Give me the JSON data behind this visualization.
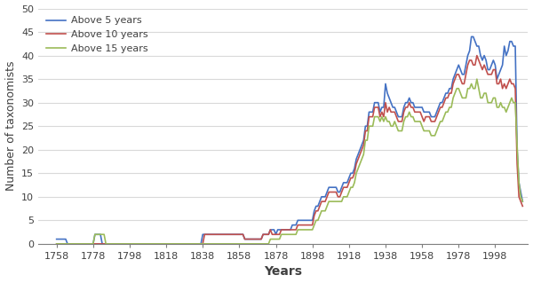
{
  "title": "",
  "xlabel": "Years",
  "ylabel": "Number of taxonomists",
  "ylim": [
    0,
    50
  ],
  "yticks": [
    0,
    5,
    10,
    15,
    20,
    25,
    30,
    35,
    40,
    45,
    50
  ],
  "xtick_positions": [
    1758,
    1778,
    1798,
    1818,
    1838,
    1858,
    1878,
    1898,
    1918,
    1938,
    1958,
    1978,
    1998
  ],
  "line_colors": {
    "above5": "#4472C4",
    "above10": "#C0504D",
    "above15": "#9BBB59"
  },
  "legend_labels": [
    "Above 5 years",
    "Above 10 years",
    "Above 15 years"
  ],
  "years": [
    1758,
    1759,
    1760,
    1761,
    1762,
    1763,
    1764,
    1765,
    1766,
    1767,
    1768,
    1769,
    1770,
    1771,
    1772,
    1773,
    1774,
    1775,
    1776,
    1777,
    1778,
    1779,
    1780,
    1781,
    1782,
    1783,
    1784,
    1785,
    1786,
    1787,
    1788,
    1789,
    1790,
    1791,
    1792,
    1793,
    1794,
    1795,
    1796,
    1797,
    1798,
    1799,
    1800,
    1801,
    1802,
    1803,
    1804,
    1805,
    1806,
    1807,
    1808,
    1809,
    1810,
    1811,
    1812,
    1813,
    1814,
    1815,
    1816,
    1817,
    1818,
    1819,
    1820,
    1821,
    1822,
    1823,
    1824,
    1825,
    1826,
    1827,
    1828,
    1829,
    1830,
    1831,
    1832,
    1833,
    1834,
    1835,
    1836,
    1837,
    1838,
    1839,
    1840,
    1841,
    1842,
    1843,
    1844,
    1845,
    1846,
    1847,
    1848,
    1849,
    1850,
    1851,
    1852,
    1853,
    1854,
    1855,
    1856,
    1857,
    1858,
    1859,
    1860,
    1861,
    1862,
    1863,
    1864,
    1865,
    1866,
    1867,
    1868,
    1869,
    1870,
    1871,
    1872,
    1873,
    1874,
    1875,
    1876,
    1877,
    1878,
    1879,
    1880,
    1881,
    1882,
    1883,
    1884,
    1885,
    1886,
    1887,
    1888,
    1889,
    1890,
    1891,
    1892,
    1893,
    1894,
    1895,
    1896,
    1897,
    1898,
    1899,
    1900,
    1901,
    1902,
    1903,
    1904,
    1905,
    1906,
    1907,
    1908,
    1909,
    1910,
    1911,
    1912,
    1913,
    1914,
    1915,
    1916,
    1917,
    1918,
    1919,
    1920,
    1921,
    1922,
    1923,
    1924,
    1925,
    1926,
    1927,
    1928,
    1929,
    1930,
    1931,
    1932,
    1933,
    1934,
    1935,
    1936,
    1937,
    1938,
    1939,
    1940,
    1941,
    1942,
    1943,
    1944,
    1945,
    1946,
    1947,
    1948,
    1949,
    1950,
    1951,
    1952,
    1953,
    1954,
    1955,
    1956,
    1957,
    1958,
    1959,
    1960,
    1961,
    1962,
    1963,
    1964,
    1965,
    1966,
    1967,
    1968,
    1969,
    1970,
    1971,
    1972,
    1973,
    1974,
    1975,
    1976,
    1977,
    1978,
    1979,
    1980,
    1981,
    1982,
    1983,
    1984,
    1985,
    1986,
    1987,
    1988,
    1989,
    1990,
    1991,
    1992,
    1993,
    1994,
    1995,
    1996,
    1997,
    1998,
    1999,
    2000,
    2001,
    2002,
    2003,
    2004,
    2005,
    2006,
    2007,
    2008,
    2009,
    2010,
    2011,
    2012,
    2013
  ],
  "above5": [
    1,
    1,
    1,
    1,
    1,
    1,
    0,
    0,
    0,
    0,
    0,
    0,
    0,
    0,
    0,
    0,
    0,
    0,
    0,
    0,
    0,
    2,
    2,
    2,
    2,
    0,
    0,
    0,
    0,
    0,
    0,
    0,
    0,
    0,
    0,
    0,
    0,
    0,
    0,
    0,
    0,
    0,
    0,
    0,
    0,
    0,
    0,
    0,
    0,
    0,
    0,
    0,
    0,
    0,
    0,
    0,
    0,
    0,
    0,
    0,
    0,
    0,
    0,
    0,
    0,
    0,
    0,
    0,
    0,
    0,
    0,
    0,
    0,
    0,
    0,
    0,
    0,
    0,
    0,
    0,
    2,
    2,
    2,
    2,
    2,
    2,
    2,
    2,
    2,
    2,
    2,
    2,
    2,
    2,
    2,
    2,
    2,
    2,
    2,
    2,
    2,
    2,
    2,
    1,
    1,
    1,
    1,
    1,
    1,
    1,
    1,
    1,
    1,
    2,
    2,
    2,
    2,
    3,
    3,
    3,
    2,
    3,
    3,
    3,
    3,
    3,
    3,
    3,
    3,
    4,
    4,
    4,
    5,
    5,
    5,
    5,
    5,
    5,
    5,
    5,
    5,
    7,
    8,
    8,
    9,
    10,
    10,
    10,
    11,
    12,
    12,
    12,
    12,
    12,
    11,
    11,
    12,
    13,
    13,
    13,
    14,
    15,
    15,
    16,
    18,
    19,
    20,
    21,
    22,
    25,
    25,
    28,
    28,
    28,
    30,
    30,
    30,
    28,
    29,
    29,
    34,
    32,
    31,
    30,
    29,
    29,
    28,
    27,
    27,
    27,
    29,
    30,
    30,
    31,
    30,
    30,
    29,
    29,
    29,
    29,
    29,
    28,
    28,
    28,
    28,
    27,
    27,
    27,
    28,
    29,
    30,
    30,
    31,
    32,
    32,
    33,
    33,
    35,
    36,
    37,
    38,
    37,
    36,
    36,
    38,
    40,
    41,
    44,
    44,
    43,
    42,
    42,
    40,
    39,
    40,
    39,
    37,
    37,
    38,
    39,
    38,
    35,
    36,
    37,
    38,
    42,
    40,
    41,
    43,
    43,
    42,
    42,
    20,
    13,
    11,
    9
  ],
  "above10": [
    0,
    0,
    0,
    0,
    0,
    0,
    0,
    0,
    0,
    0,
    0,
    0,
    0,
    0,
    0,
    0,
    0,
    0,
    0,
    0,
    0,
    0,
    0,
    0,
    0,
    0,
    0,
    0,
    0,
    0,
    0,
    0,
    0,
    0,
    0,
    0,
    0,
    0,
    0,
    0,
    0,
    0,
    0,
    0,
    0,
    0,
    0,
    0,
    0,
    0,
    0,
    0,
    0,
    0,
    0,
    0,
    0,
    0,
    0,
    0,
    0,
    0,
    0,
    0,
    0,
    0,
    0,
    0,
    0,
    0,
    0,
    0,
    0,
    0,
    0,
    0,
    0,
    0,
    0,
    0,
    0,
    2,
    2,
    2,
    2,
    2,
    2,
    2,
    2,
    2,
    2,
    2,
    2,
    2,
    2,
    2,
    2,
    2,
    2,
    2,
    2,
    2,
    2,
    1,
    1,
    1,
    1,
    1,
    1,
    1,
    1,
    1,
    1,
    2,
    2,
    2,
    2,
    3,
    2,
    2,
    2,
    2,
    2,
    3,
    3,
    3,
    3,
    3,
    3,
    3,
    3,
    3,
    4,
    4,
    4,
    4,
    4,
    4,
    4,
    4,
    4,
    6,
    7,
    7,
    8,
    9,
    9,
    9,
    10,
    11,
    11,
    11,
    11,
    11,
    10,
    10,
    11,
    12,
    12,
    12,
    13,
    14,
    14,
    15,
    17,
    18,
    19,
    20,
    21,
    24,
    24,
    27,
    27,
    27,
    29,
    29,
    29,
    27,
    28,
    27,
    30,
    28,
    29,
    28,
    28,
    28,
    27,
    26,
    26,
    26,
    28,
    29,
    29,
    30,
    29,
    29,
    28,
    28,
    28,
    28,
    27,
    26,
    27,
    27,
    27,
    26,
    26,
    26,
    27,
    28,
    29,
    29,
    30,
    31,
    31,
    32,
    32,
    34,
    35,
    36,
    36,
    35,
    34,
    34,
    36,
    38,
    39,
    39,
    38,
    38,
    40,
    39,
    38,
    37,
    38,
    37,
    36,
    36,
    36,
    37,
    37,
    34,
    34,
    35,
    33,
    34,
    33,
    34,
    35,
    34,
    34,
    33,
    17,
    10,
    9,
    8
  ],
  "above15": [
    0,
    0,
    0,
    0,
    0,
    0,
    0,
    0,
    0,
    0,
    0,
    0,
    0,
    0,
    0,
    0,
    0,
    0,
    0,
    0,
    0,
    2,
    2,
    2,
    2,
    2,
    2,
    0,
    0,
    0,
    0,
    0,
    0,
    0,
    0,
    0,
    0,
    0,
    0,
    0,
    0,
    0,
    0,
    0,
    0,
    0,
    0,
    0,
    0,
    0,
    0,
    0,
    0,
    0,
    0,
    0,
    0,
    0,
    0,
    0,
    0,
    0,
    0,
    0,
    0,
    0,
    0,
    0,
    0,
    0,
    0,
    0,
    0,
    0,
    0,
    0,
    0,
    0,
    0,
    0,
    0,
    0,
    0,
    0,
    0,
    0,
    0,
    0,
    0,
    0,
    0,
    0,
    0,
    0,
    0,
    0,
    0,
    0,
    0,
    0,
    0,
    0,
    0,
    0,
    0,
    0,
    0,
    0,
    0,
    0,
    0,
    0,
    0,
    0,
    0,
    0,
    0,
    1,
    1,
    1,
    1,
    1,
    1,
    2,
    2,
    2,
    2,
    2,
    2,
    2,
    2,
    2,
    3,
    3,
    3,
    3,
    3,
    3,
    3,
    3,
    3,
    4,
    5,
    5,
    6,
    7,
    7,
    7,
    8,
    9,
    9,
    9,
    9,
    9,
    9,
    9,
    9,
    10,
    10,
    10,
    11,
    12,
    12,
    13,
    15,
    16,
    17,
    18,
    19,
    22,
    22,
    25,
    25,
    25,
    27,
    27,
    27,
    26,
    27,
    26,
    27,
    26,
    26,
    25,
    25,
    26,
    25,
    24,
    24,
    24,
    26,
    27,
    27,
    28,
    27,
    27,
    26,
    26,
    26,
    26,
    25,
    24,
    24,
    24,
    24,
    23,
    23,
    23,
    24,
    25,
    26,
    26,
    27,
    28,
    28,
    29,
    29,
    31,
    32,
    33,
    33,
    32,
    31,
    31,
    31,
    33,
    33,
    34,
    33,
    33,
    35,
    33,
    31,
    31,
    32,
    32,
    30,
    30,
    30,
    31,
    31,
    29,
    29,
    30,
    29,
    29,
    28,
    29,
    30,
    31,
    30,
    30,
    21,
    13,
    10,
    9
  ],
  "bg_color": "#ffffff",
  "grid_color": "#d9d9d9",
  "spine_color": "#7f7f7f",
  "tick_color": "#7f7f7f",
  "label_fontsize": 9,
  "tick_fontsize": 8,
  "xlabel_fontsize": 10,
  "linewidth": 1.2
}
